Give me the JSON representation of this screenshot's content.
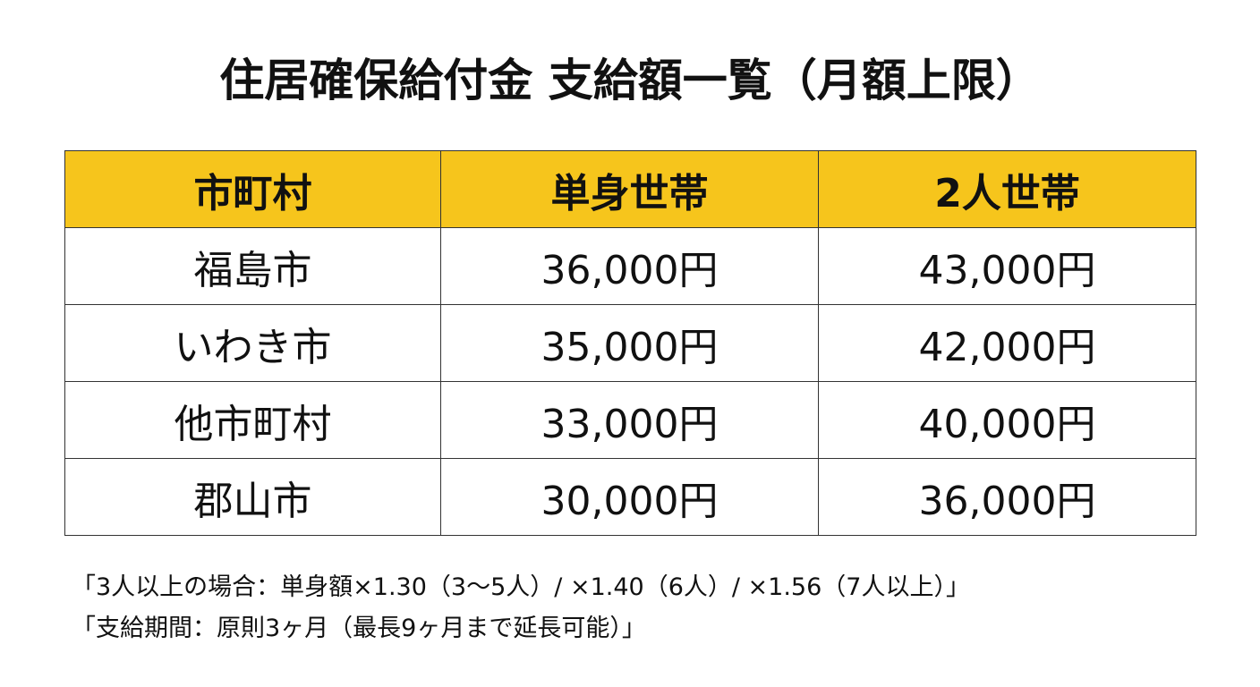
{
  "title": "住居確保給付金 支給額一覧（月額上限）",
  "table": {
    "header": [
      "市町村",
      "単身世帯",
      "2人世帯"
    ],
    "rows": [
      [
        "福島市",
        "36,000円",
        "43,000円"
      ],
      [
        "いわき市",
        "35,000円",
        "42,000円"
      ],
      [
        "他市町村",
        "33,000円",
        "40,000円"
      ],
      [
        "郡山市",
        "30,000円",
        "36,000円"
      ]
    ]
  },
  "notes": [
    "「3人以上の場合：単身額×1.30（3〜5人）/ ×1.40（6人）/ ×1.56（7人以上）」",
    "「支給期間：原則3ヶ月（最長9ヶ月まで延長可能）」"
  ]
}
